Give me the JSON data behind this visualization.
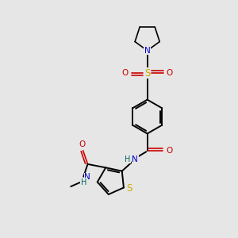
{
  "background_color": "#e6e6e6",
  "colors": {
    "C": "#000000",
    "N": "#0000cc",
    "O": "#cc0000",
    "S_thio": "#ccaa00",
    "S_sulfonyl": "#ccaa00",
    "H": "#006666",
    "bond": "#000000"
  },
  "layout": {
    "xlim": [
      0,
      10
    ],
    "ylim": [
      0,
      10
    ]
  }
}
